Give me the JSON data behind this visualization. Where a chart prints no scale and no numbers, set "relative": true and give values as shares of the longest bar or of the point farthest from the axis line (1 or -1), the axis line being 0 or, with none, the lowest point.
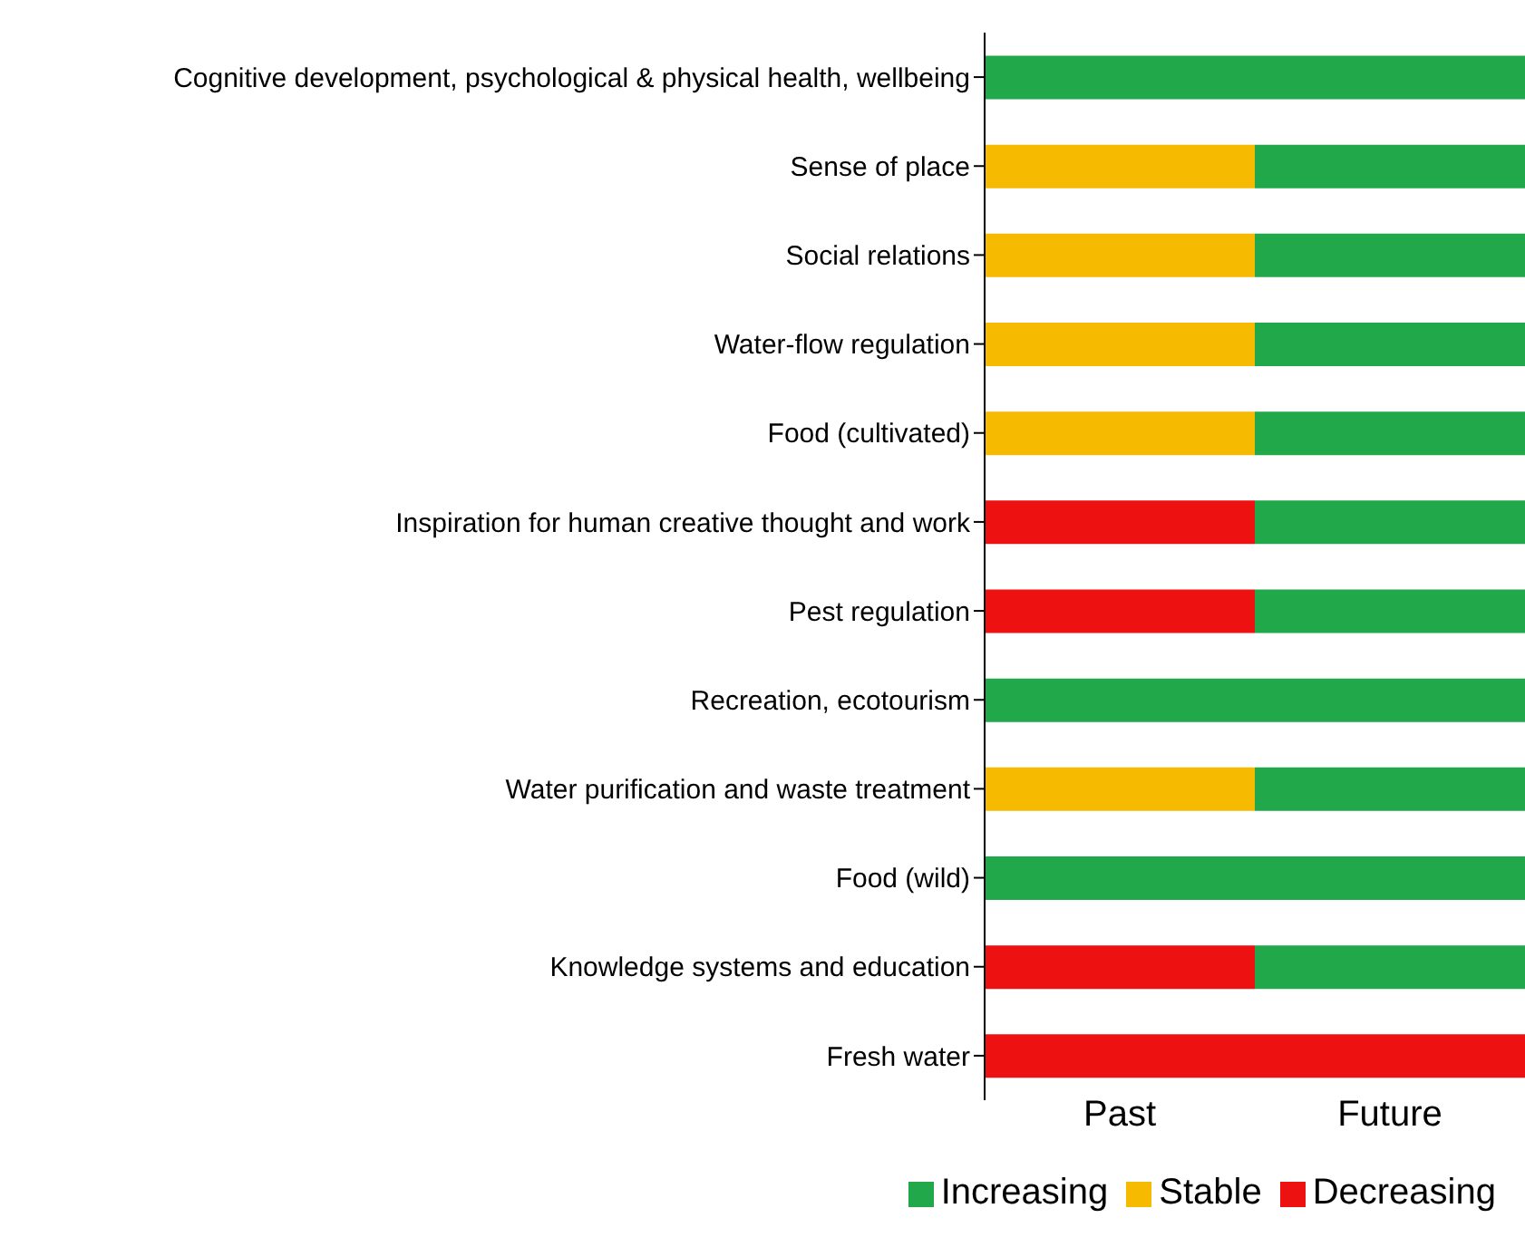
{
  "chart_data": {
    "type": "bar",
    "orientation": "horizontal",
    "stacked": true,
    "relative": true,
    "categories": [
      "Cognitive development, psychological & physical health, wellbeing",
      "Sense of place",
      "Social relations",
      "Water-flow regulation",
      "Food (cultivated)",
      "Inspiration for human creative thought and work",
      "Pest regulation",
      "Recreation, ecotourism",
      "Water purification and waste treatment",
      "Food (wild)",
      "Knowledge systems and education",
      "Fresh water"
    ],
    "series": [
      {
        "name": "Decreasing",
        "color": "#ee1111",
        "values": [
          0,
          0,
          0,
          0,
          0,
          0.5,
          0.5,
          0,
          0,
          0,
          0.5,
          1
        ]
      },
      {
        "name": "Stable",
        "color": "#f6ba00",
        "values": [
          0,
          0.5,
          0.5,
          0.5,
          0.5,
          0,
          0,
          0,
          0.5,
          0,
          0,
          0
        ]
      },
      {
        "name": "Increasing",
        "color": "#20a84a",
        "values": [
          1,
          0.5,
          0.5,
          0.5,
          0.5,
          0.5,
          0.5,
          1,
          0.5,
          1,
          0.5,
          0
        ]
      }
    ],
    "annotations": [
      "Past",
      "Future"
    ],
    "legend": "bottom"
  }
}
